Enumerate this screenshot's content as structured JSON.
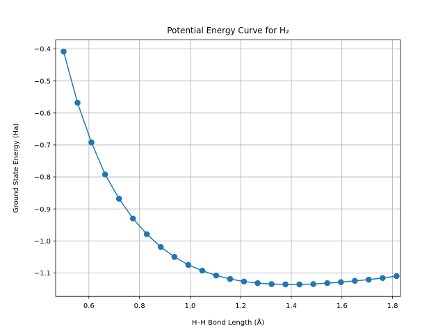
{
  "chart_data": {
    "type": "line",
    "title": "Potential Energy Curve for H₂",
    "xlabel": "H–H Bond Length (Å)",
    "ylabel": "Ground State Energy (Ha)",
    "xlim": [
      0.4685,
      1.8315
    ],
    "ylim": [
      -1.1734,
      -0.3717
    ],
    "grid": true,
    "xticks": [
      0.6,
      0.8,
      1.0,
      1.2,
      1.4,
      1.6,
      1.8
    ],
    "xtick_labels": [
      "0.6",
      "0.8",
      "1.0",
      "1.2",
      "1.4",
      "1.6",
      "1.8"
    ],
    "yticks": [
      -0.4,
      -0.5,
      -0.6,
      -0.7,
      -0.8,
      -0.9,
      -1.0,
      -1.1
    ],
    "ytick_labels": [
      "−0.4",
      "−0.5",
      "−0.6",
      "−0.7",
      "−0.8",
      "−0.9",
      "−1.0",
      "−1.1"
    ],
    "series": [
      {
        "color": "#1f77b4",
        "marker": "circle",
        "x": [
          0.5,
          0.555,
          0.61,
          0.664,
          0.719,
          0.774,
          0.829,
          0.884,
          0.938,
          0.993,
          1.048,
          1.103,
          1.158,
          1.213,
          1.267,
          1.322,
          1.377,
          1.432,
          1.487,
          1.542,
          1.596,
          1.651,
          1.706,
          1.761,
          1.816
        ],
        "y": [
          -0.408,
          -0.568,
          -0.692,
          -0.792,
          -0.868,
          -0.93,
          -0.979,
          -1.019,
          -1.05,
          -1.075,
          -1.093,
          -1.108,
          -1.119,
          -1.127,
          -1.132,
          -1.135,
          -1.136,
          -1.136,
          -1.135,
          -1.132,
          -1.129,
          -1.125,
          -1.121,
          -1.116,
          -1.11
        ]
      }
    ]
  }
}
